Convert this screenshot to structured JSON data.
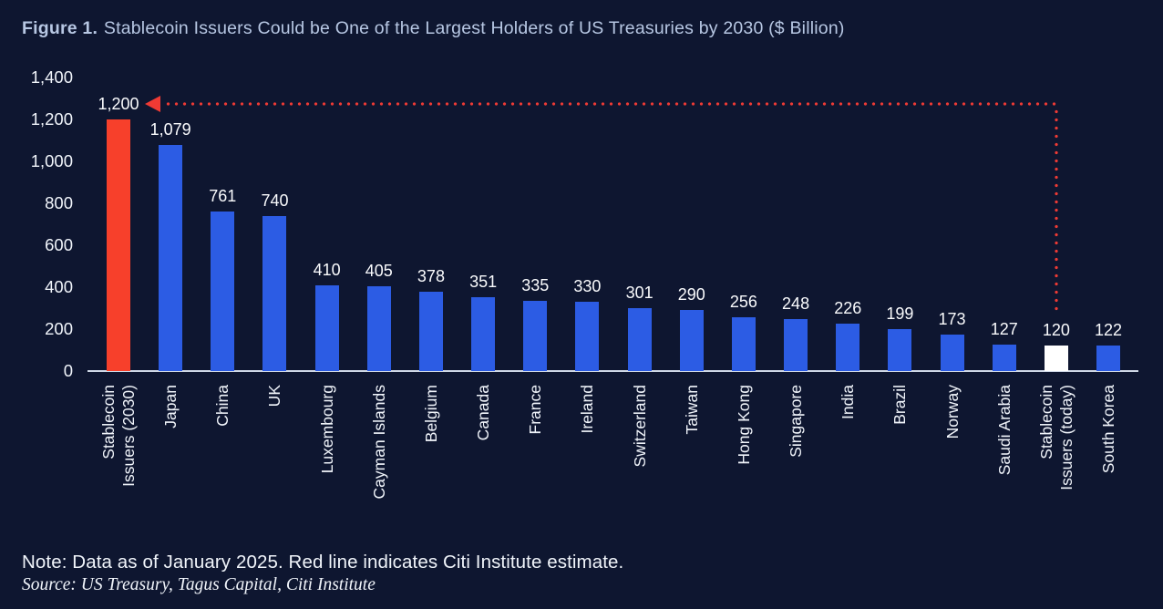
{
  "title": {
    "prefix": "Figure 1.",
    "text": "Stablecoin Issuers Could be One of the Largest Holders of US Treasuries by 2030 ($ Billion)"
  },
  "note": "Note: Data as of January 2025. Red line indicates Citi Institute estimate.",
  "source": "Source: US Treasury, Tagus Capital, Citi Institute",
  "colors": {
    "background": "#0e1630",
    "title_text": "#b7c7e3",
    "text_primary": "#f0f4fa",
    "axis_line": "#cfd8e6",
    "bar_blue": "#2c5ce4",
    "bar_red": "#f7402b",
    "bar_white": "#ffffff",
    "annotation_red": "#ef3a34"
  },
  "chart_data": {
    "type": "bar",
    "title": "Figure 1. Stablecoin Issuers Could be One of the Largest Holders of US Treasuries by 2030 ($ Billion)",
    "categories": [
      "Stablecoin\nIssuers (2030)",
      "Japan",
      "China",
      "UK",
      "Luxembourg",
      "Cayman Islands",
      "Belgium",
      "Canada",
      "France",
      "Ireland",
      "Switzerland",
      "Taiwan",
      "Hong Kong",
      "Singapore",
      "India",
      "Brazil",
      "Norway",
      "Saudi Arabia",
      "Stablecoin\nIssuers (today)",
      "South Korea"
    ],
    "values": [
      1200,
      1079,
      761,
      740,
      410,
      405,
      378,
      351,
      335,
      330,
      301,
      290,
      256,
      248,
      226,
      199,
      173,
      127,
      120,
      122
    ],
    "value_labels": [
      "1,200",
      "1,079",
      "761",
      "740",
      "410",
      "405",
      "378",
      "351",
      "335",
      "330",
      "301",
      "290",
      "256",
      "248",
      "226",
      "199",
      "173",
      "127",
      "120",
      "122"
    ],
    "bar_color_keys": [
      "bar_red",
      "bar_blue",
      "bar_blue",
      "bar_blue",
      "bar_blue",
      "bar_blue",
      "bar_blue",
      "bar_blue",
      "bar_blue",
      "bar_blue",
      "bar_blue",
      "bar_blue",
      "bar_blue",
      "bar_blue",
      "bar_blue",
      "bar_blue",
      "bar_blue",
      "bar_blue",
      "bar_white",
      "bar_blue"
    ],
    "xlabel": "",
    "ylabel": "",
    "ylim": [
      0,
      1400
    ],
    "yticks": [
      0,
      200,
      400,
      600,
      800,
      1000,
      1200,
      1400
    ],
    "ytick_labels": [
      "0",
      "200",
      "400",
      "600",
      "800",
      "1,000",
      "1,200",
      "1,400"
    ],
    "grid": false,
    "legend": null,
    "annotation": {
      "style": "red dotted line with left arrow",
      "from_category": "Stablecoin Issuers (2030)",
      "to_category": "Stablecoin Issuers (today)",
      "meaning": "Red line indicates Citi Institute estimate"
    }
  }
}
